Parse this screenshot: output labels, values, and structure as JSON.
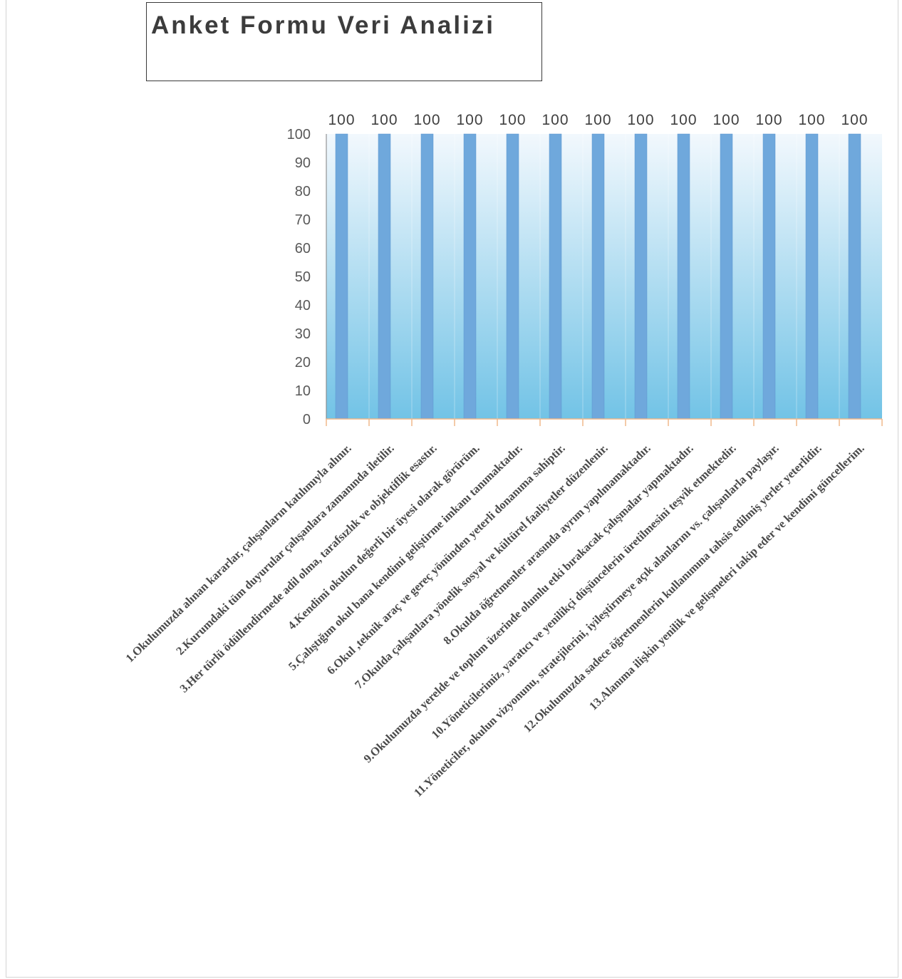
{
  "chart_data": {
    "type": "bar",
    "title": "Anket Formu Veri Analizi",
    "xlabel": "",
    "ylabel": "",
    "ylim": [
      0,
      100
    ],
    "yticks": [
      0,
      10,
      20,
      30,
      40,
      50,
      60,
      70,
      80,
      90,
      100
    ],
    "grid": false,
    "legend": "none",
    "categories": [
      "1.Okulumuzda alınan kararlar, çalışanların katılımıyla alınır.",
      "2.Kurumdaki tüm duyurular çalışanlara zamanında iletilir.",
      "3.Her türlü ödüllendirmede adil olma, tarafsızlık ve objektiflik esastır.",
      "4.Kendimi okulun değerli bir üyesi olarak görürüm.",
      "5.Çalıştığım okul bana kendimi geliştirme imkanı tanımaktadır.",
      "6.Okul ,teknik araç ve gereç yönünden yeterli donanıma sahiptir.",
      "7.Okulda çalışanlara yönelik sosyal ve kültürel faaliyetler düzenlenir.",
      "8.Okulda öğretmenler arasında ayrım yapılmamaktadır.",
      "9.Okulumuzda yerelde ve toplum üzerinde olumlu etki bırakacak çalışmalar yapmaktadır.",
      "10.Yöneticilerimiz, yaratıcı ve yenilikçi düşüncelerin üretilmesini teşvik etmektedir.",
      "11.Yöneticiler, okulun vizyonunu, stratejilerini, iyileştirmeye açık alanlarını vs. çalışanlarla paylaşır.",
      "12.Okulumuzda sadece öğretmenlerin kullanımına tahsis edilmiş yerler yeterlidir.",
      "13.Alanıma ilişkin yenilik ve gelişmeleri takip eder ve kendimi güncellerim."
    ],
    "values": [
      100,
      100,
      100,
      100,
      100,
      100,
      100,
      100,
      100,
      100,
      100,
      100,
      100
    ],
    "data_labels": [
      "100",
      "100",
      "100",
      "100",
      "100",
      "100",
      "100",
      "100",
      "100",
      "100",
      "100",
      "100",
      "100"
    ],
    "colors": {
      "bar": "#6fa8dc",
      "bar_edge": "#5b95cf",
      "plot_bg_top": "#f2f8fd",
      "plot_bg_bottom": "#72c3e6",
      "axis": "#f0b88a",
      "tick_text": "#595959"
    }
  }
}
